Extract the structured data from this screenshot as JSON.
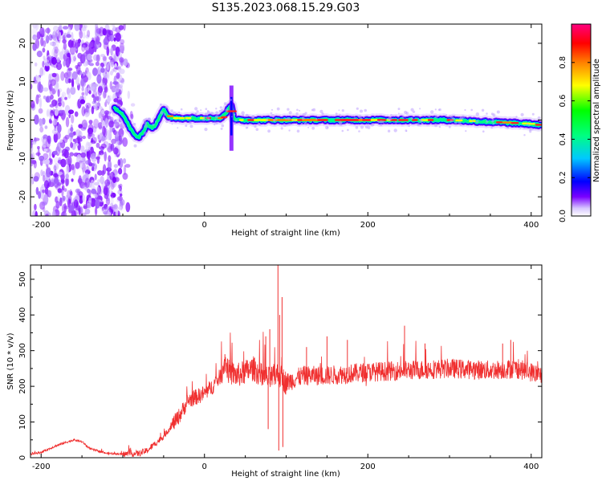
{
  "title": "S135.2023.068.15.29.G03",
  "chart_data": [
    {
      "type": "heatmap",
      "title": "S135.2023.068.15.29.G03",
      "xlabel": "Height of straight line (km)",
      "ylabel": "Frequency (Hz)",
      "xlim": [
        -213,
        413
      ],
      "ylim": [
        -25,
        25
      ],
      "xticks": [
        -200,
        0,
        200,
        400
      ],
      "yticks": [
        20,
        10,
        0,
        -10,
        -20
      ],
      "grid": false,
      "colorbar": {
        "label": "Normalized spectral amplitude",
        "ticks": [
          0.0,
          0.2,
          0.4,
          0.6,
          0.8
        ],
        "range": [
          0,
          1
        ],
        "colors": [
          "#ffffff",
          "#7a00ff",
          "#0000ff",
          "#00c8ff",
          "#00ff80",
          "#00ff00",
          "#ffff00",
          "#ff8000",
          "#ff0000",
          "#ff0080"
        ]
      },
      "ridge": {
        "x": [
          -110,
          -105,
          -100,
          -95,
          -90,
          -85,
          -80,
          -75,
          -70,
          -65,
          -60,
          -55,
          -50,
          -45,
          -40,
          -30,
          -20,
          -10,
          0,
          10,
          20,
          25,
          30,
          33,
          36,
          40,
          50,
          100,
          150,
          200,
          250,
          300,
          350,
          400,
          413
        ],
        "y": [
          3,
          2.5,
          1.5,
          -0.5,
          -2.5,
          -4,
          -4.5,
          -3,
          -1,
          -2,
          -1.5,
          1,
          3,
          1,
          0.5,
          0.5,
          0.5,
          0.5,
          0.5,
          0.5,
          0.5,
          1.5,
          3,
          4,
          0.5,
          0,
          0,
          0,
          0,
          0,
          0,
          0,
          -0.5,
          -1,
          -1.5
        ]
      },
      "noise_region_x": [
        -213,
        -100
      ]
    },
    {
      "type": "line",
      "xlabel": "Height of straight line (km)",
      "ylabel": "SNR (10 * v/v)",
      "xlim": [
        -213,
        413
      ],
      "ylim": [
        0,
        540
      ],
      "xticks": [
        -200,
        0,
        200,
        400
      ],
      "yticks": [
        0,
        100,
        200,
        300,
        400,
        500
      ],
      "grid": false,
      "color": "#f03030",
      "envelope": {
        "x": [
          -213,
          -200,
          -180,
          -160,
          -150,
          -140,
          -120,
          -100,
          -80,
          -70,
          -60,
          -50,
          -40,
          -30,
          -20,
          -10,
          0,
          10,
          20,
          25,
          30,
          40,
          50,
          60,
          70,
          80,
          90,
          100,
          120,
          150,
          200,
          250,
          300,
          350,
          380,
          400,
          413
        ],
        "y": [
          10,
          15,
          35,
          50,
          45,
          25,
          12,
          10,
          12,
          20,
          40,
          60,
          90,
          120,
          160,
          170,
          180,
          200,
          230,
          270,
          240,
          230,
          240,
          250,
          230,
          220,
          235,
          210,
          230,
          230,
          240,
          245,
          250,
          245,
          250,
          240,
          230
        ]
      },
      "spikes": [
        {
          "x": 25,
          "y": 290
        },
        {
          "x": 75,
          "y": 340
        },
        {
          "x": 78,
          "y": 80
        },
        {
          "x": 80,
          "y": 360
        },
        {
          "x": 90,
          "y": 540
        },
        {
          "x": 91,
          "y": 20
        },
        {
          "x": 92,
          "y": 400
        },
        {
          "x": 95,
          "y": 450
        },
        {
          "x": 96,
          "y": 30
        },
        {
          "x": 125,
          "y": 310
        },
        {
          "x": 150,
          "y": 340
        },
        {
          "x": 175,
          "y": 330
        },
        {
          "x": 245,
          "y": 370
        },
        {
          "x": 270,
          "y": 320
        },
        {
          "x": 365,
          "y": 320
        },
        {
          "x": 375,
          "y": 330
        }
      ]
    }
  ]
}
